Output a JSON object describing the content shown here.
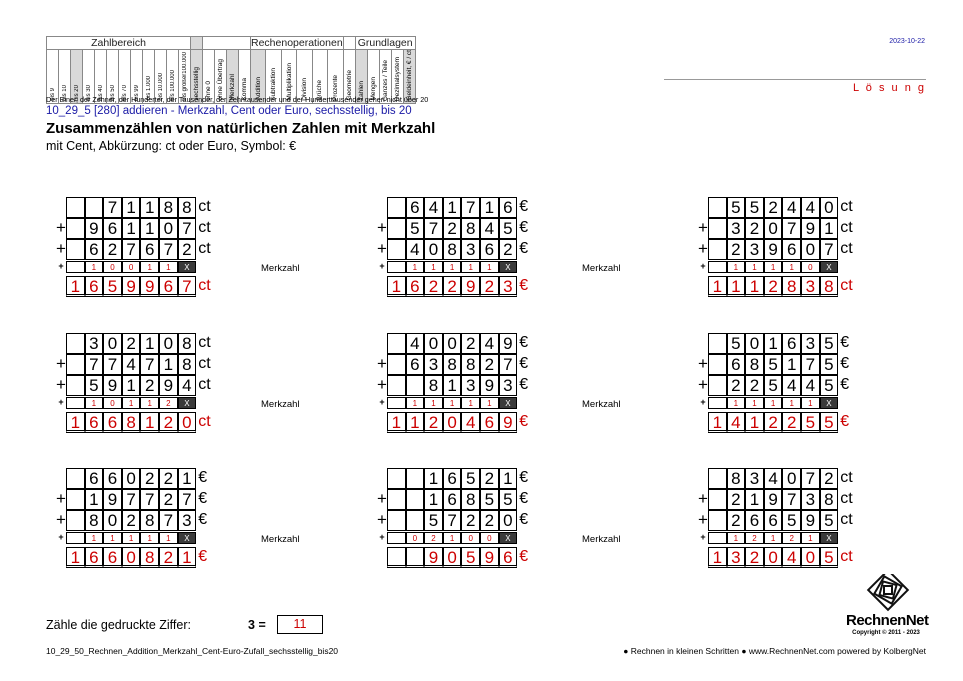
{
  "header": {
    "groups": {
      "zahlbereich": "Zahlbereich",
      "rechenoperationen": "Rechenoperationen",
      "grundlagen": "Grundlagen"
    },
    "number_cols": [
      "9",
      "10",
      "20",
      "30",
      "40",
      "50",
      "70",
      "99",
      "1.000",
      "10.000",
      "100.000",
      "größer100.000"
    ],
    "bis_label": "bis",
    "other_cols": [
      "sechsstellig",
      "ohne 0",
      "ohne Übertrag",
      "Merkzahl",
      "Komma",
      "Addition",
      "Subtraktion",
      "Multiplikation",
      "Division",
      "Brüche",
      "Prozente",
      "Geometrie",
      "Zahlen",
      "Mengen",
      "Ganzes / Teile",
      "Dezimalsystem",
      "Geldeinheit, € / ct"
    ],
    "description": "Der Einer, der Zehner, der Hunderter, der Tausender, der Zehntausender und der Hunderttausender gehen nicht über 20",
    "code_line": "10_29_5   [280]   addieren - Merkzahl, Cent oder Euro, sechsstellig, bis 20",
    "title": "Zusammenzählen von natürlichen Zahlen mit Merkzahl",
    "subtitle": "mit Cent, Abkürzung: ct oder Euro, Symbol: €",
    "date": "2023-10-22",
    "solution_label": "L ö s u n g"
  },
  "merkzahl_label": "Merkzahl",
  "problems": [
    {
      "unit": "ct",
      "rows": [
        " 71188",
        "961107",
        "627672"
      ],
      "carry": [
        "1",
        "0",
        "0",
        "1",
        "1",
        "X"
      ],
      "result": "1659967"
    },
    {
      "unit": "€",
      "rows": [
        "641716",
        "572845",
        "408362"
      ],
      "carry": [
        "1",
        "1",
        "1",
        "1",
        "1",
        "X"
      ],
      "result": "1622923"
    },
    {
      "unit": "ct",
      "rows": [
        "552440",
        "320791",
        "239607"
      ],
      "carry": [
        "1",
        "1",
        "1",
        "1",
        "0",
        "X"
      ],
      "result": "1112838"
    },
    {
      "unit": "ct",
      "rows": [
        "302108",
        "774718",
        "591294"
      ],
      "carry": [
        "1",
        "0",
        "1",
        "1",
        "2",
        "X"
      ],
      "result": "1668120"
    },
    {
      "unit": "€",
      "rows": [
        "400249",
        "638827",
        " 81393"
      ],
      "carry": [
        "1",
        "1",
        "1",
        "1",
        "1",
        "X"
      ],
      "result": "1120469"
    },
    {
      "unit": "€",
      "rows": [
        "501635",
        "685175",
        "225445"
      ],
      "carry": [
        "1",
        "1",
        "1",
        "1",
        "1",
        "X"
      ],
      "result": "1412255"
    },
    {
      "unit": "€",
      "rows": [
        "660221",
        "197727",
        "802873"
      ],
      "carry": [
        "1",
        "1",
        "1",
        "1",
        "1",
        "X"
      ],
      "result": "1660821"
    },
    {
      "unit": "€",
      "rows": [
        " 16521",
        " 16855",
        " 57220"
      ],
      "carry": [
        "0",
        "2",
        "1",
        "0",
        "0",
        "X"
      ],
      "result": "  90596"
    },
    {
      "unit": "ct",
      "rows": [
        "834072",
        "219738",
        "266595"
      ],
      "carry": [
        "1",
        "2",
        "1",
        "2",
        "1",
        "X"
      ],
      "result": "1320405"
    }
  ],
  "footer": {
    "count_label": "Zähle die gedruckte Ziffer:",
    "count_digit": "3",
    "equals": "=",
    "count_answer": "11",
    "left": "10_29_50_Rechnen_Addition_Merkzahl_Cent-Euro-Zufall_sechsstellig_bis20",
    "right": "● Rechnen in kleinen Schritten ●      www.RechnenNet.com powered by KolbergNet",
    "brand": "RechnenNet",
    "copyright": "Copyright © 2011 - 2023"
  }
}
